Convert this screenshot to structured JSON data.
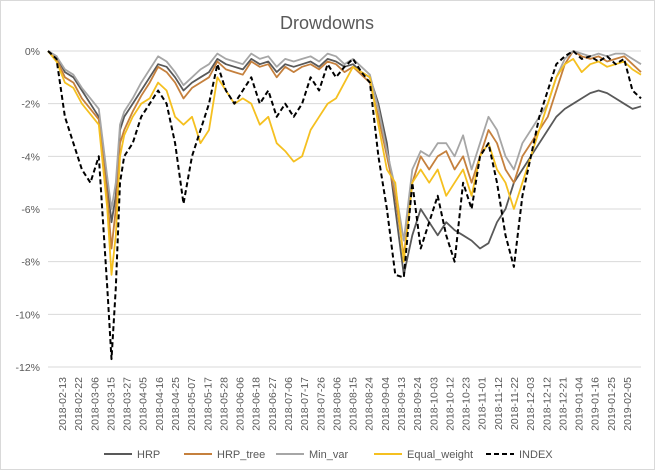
{
  "chart_data": {
    "type": "line",
    "title": "Drowdowns",
    "xlabel": "",
    "ylabel": "",
    "ylim": [
      -12,
      0
    ],
    "yticks": [
      0,
      -2,
      -4,
      -6,
      -8,
      -10,
      -12
    ],
    "ytick_labels": [
      "0%",
      "-2%",
      "-4%",
      "-6%",
      "-8%",
      "-10%",
      "-12%"
    ],
    "xticks": [
      "2018-02-13",
      "2018-02-22",
      "2018-03-06",
      "2018-03-15",
      "2018-03-27",
      "2018-04-05",
      "2018-04-16",
      "2018-04-25",
      "2018-05-07",
      "2018-05-17",
      "2018-05-28",
      "2018-06-06",
      "2018-06-18",
      "2018-06-27",
      "2018-07-06",
      "2018-07-17",
      "2018-07-26",
      "2018-08-06",
      "2018-08-15",
      "2018-08-24",
      "2018-09-04",
      "2018-09-13",
      "2018-09-24",
      "2018-10-03",
      "2018-10-12",
      "2018-10-23",
      "2018-11-01",
      "2018-11-12",
      "2018-11-22",
      "2018-12-03",
      "2018-12-12",
      "2018-12-21",
      "2019-01-04",
      "2019-01-16",
      "2019-01-25",
      "2019-02-05"
    ],
    "grid": true,
    "legend_position": "bottom",
    "x_index": [
      0,
      4,
      8,
      12,
      16,
      20,
      24,
      28,
      30,
      32,
      34,
      36,
      40,
      44,
      48,
      52,
      56,
      60,
      64,
      68,
      72,
      76,
      80,
      84,
      88,
      92,
      96,
      100,
      104,
      108,
      112,
      116,
      120,
      124,
      128,
      132,
      136,
      140,
      144,
      148,
      152,
      156,
      160,
      164,
      168,
      172,
      176,
      180,
      184,
      188,
      192,
      196,
      200,
      204,
      208,
      212,
      216,
      220,
      224,
      228,
      232,
      236,
      240,
      244,
      248,
      252,
      256,
      260,
      264,
      268,
      272,
      276,
      280
    ],
    "series": [
      {
        "name": "HRP",
        "color": "#595959",
        "dash": false,
        "values": [
          0,
          -0.2,
          -0.8,
          -1.0,
          -1.5,
          -2.0,
          -2.5,
          -5.0,
          -6.5,
          -5.5,
          -3.0,
          -2.5,
          -2.0,
          -1.5,
          -1.0,
          -0.5,
          -0.6,
          -1.0,
          -1.5,
          -1.2,
          -1.0,
          -0.8,
          -0.3,
          -0.5,
          -0.6,
          -0.7,
          -0.3,
          -0.5,
          -0.4,
          -0.8,
          -0.5,
          -0.6,
          -0.5,
          -0.4,
          -0.6,
          -0.3,
          -0.4,
          -0.6,
          -0.5,
          -0.8,
          -1.0,
          -2.0,
          -3.5,
          -6.0,
          -8.5,
          -7.0,
          -6.0,
          -6.5,
          -7.0,
          -6.5,
          -6.8,
          -7.0,
          -7.2,
          -7.5,
          -7.3,
          -6.5,
          -6.0,
          -5.0,
          -4.5,
          -4.0,
          -3.5,
          -3.0,
          -2.5,
          -2.2,
          -2.0,
          -1.8,
          -1.6,
          -1.5,
          -1.6,
          -1.8,
          -2.0,
          -2.2,
          -2.1
        ]
      },
      {
        "name": "HRP_tree",
        "color": "#c5803d",
        "dash": false,
        "values": [
          0,
          -0.3,
          -1.0,
          -1.2,
          -1.8,
          -2.2,
          -2.6,
          -5.5,
          -7.5,
          -6.0,
          -3.5,
          -3.0,
          -2.3,
          -1.7,
          -1.2,
          -0.6,
          -0.8,
          -1.2,
          -1.8,
          -1.4,
          -1.2,
          -1.0,
          -0.4,
          -0.7,
          -0.8,
          -0.9,
          -0.4,
          -0.6,
          -0.5,
          -1.0,
          -0.6,
          -0.8,
          -0.6,
          -0.5,
          -0.7,
          -0.4,
          -0.5,
          -0.8,
          -0.6,
          -0.9,
          -1.2,
          -2.5,
          -4.0,
          -5.5,
          -7.8,
          -5.0,
          -4.0,
          -4.5,
          -4.0,
          -3.8,
          -4.5,
          -4.0,
          -5.0,
          -4.0,
          -3.0,
          -3.5,
          -4.5,
          -5.0,
          -4.0,
          -3.5,
          -3.0,
          -2.5,
          -1.5,
          -0.5,
          0,
          -0.2,
          -0.3,
          -0.2,
          -0.4,
          -0.3,
          -0.2,
          -0.5,
          -0.8
        ]
      },
      {
        "name": "Min_var",
        "color": "#a6a6a6",
        "dash": false,
        "values": [
          0,
          -0.2,
          -0.7,
          -0.9,
          -1.4,
          -1.8,
          -2.2,
          -4.8,
          -6.0,
          -5.0,
          -2.8,
          -2.3,
          -1.8,
          -1.2,
          -0.7,
          -0.2,
          -0.4,
          -0.8,
          -1.3,
          -1.0,
          -0.7,
          -0.5,
          -0.1,
          -0.3,
          -0.4,
          -0.5,
          -0.1,
          -0.3,
          -0.2,
          -0.6,
          -0.3,
          -0.4,
          -0.3,
          -0.2,
          -0.4,
          -0.1,
          -0.2,
          -0.5,
          -0.3,
          -0.6,
          -0.9,
          -2.2,
          -3.8,
          -5.2,
          -7.2,
          -4.5,
          -3.8,
          -4.0,
          -3.5,
          -3.5,
          -4.0,
          -3.2,
          -4.5,
          -3.5,
          -2.5,
          -3.0,
          -4.0,
          -4.5,
          -3.5,
          -3.0,
          -2.5,
          -2.0,
          -1.0,
          -0.3,
          0,
          -0.1,
          -0.2,
          -0.1,
          -0.2,
          -0.1,
          -0.1,
          -0.3,
          -0.5
        ]
      },
      {
        "name": "Equal_weight",
        "color": "#f5c020",
        "dash": false,
        "values": [
          0,
          -0.4,
          -1.2,
          -1.4,
          -2.0,
          -2.4,
          -2.8,
          -6.0,
          -8.5,
          -7.0,
          -4.0,
          -3.2,
          -2.5,
          -2.0,
          -1.8,
          -1.2,
          -1.5,
          -2.5,
          -2.8,
          -2.5,
          -3.5,
          -3.0,
          -1.0,
          -1.5,
          -2.0,
          -1.8,
          -2.0,
          -2.8,
          -2.5,
          -3.5,
          -3.8,
          -4.2,
          -4.0,
          -3.0,
          -2.5,
          -2.0,
          -1.8,
          -1.2,
          -0.6,
          -0.8,
          -1.0,
          -2.8,
          -4.5,
          -5.0,
          -8.0,
          -5.0,
          -4.5,
          -5.0,
          -4.5,
          -5.5,
          -5.0,
          -4.5,
          -5.5,
          -4.0,
          -3.5,
          -4.5,
          -5.0,
          -6.0,
          -5.0,
          -4.0,
          -3.0,
          -2.0,
          -1.0,
          -0.5,
          -0.3,
          -0.8,
          -0.5,
          -0.4,
          -0.6,
          -0.5,
          -0.4,
          -0.7,
          -0.9
        ]
      },
      {
        "name": "INDEX",
        "color": "#000000",
        "dash": true,
        "values": [
          0,
          -0.3,
          -2.5,
          -3.5,
          -4.5,
          -5.0,
          -4.0,
          -9.0,
          -11.7,
          -9.0,
          -5.0,
          -4.0,
          -3.5,
          -2.5,
          -2.0,
          -1.5,
          -2.0,
          -3.5,
          -5.8,
          -4.0,
          -3.0,
          -2.0,
          -0.5,
          -1.5,
          -2.0,
          -1.5,
          -1.0,
          -2.0,
          -1.5,
          -2.5,
          -2.0,
          -2.5,
          -2.0,
          -1.0,
          -1.5,
          -0.5,
          -1.0,
          -0.6,
          -0.3,
          -0.8,
          -1.2,
          -4.0,
          -6.0,
          -8.5,
          -8.6,
          -5.0,
          -7.5,
          -6.5,
          -5.5,
          -7.0,
          -8.0,
          -5.0,
          -6.0,
          -4.0,
          -3.5,
          -5.0,
          -7.0,
          -8.2,
          -5.5,
          -4.0,
          -2.5,
          -1.5,
          -0.5,
          -0.2,
          0,
          -0.3,
          -0.2,
          -0.4,
          -0.2,
          -0.5,
          -0.3,
          -1.5,
          -1.8
        ]
      }
    ]
  }
}
